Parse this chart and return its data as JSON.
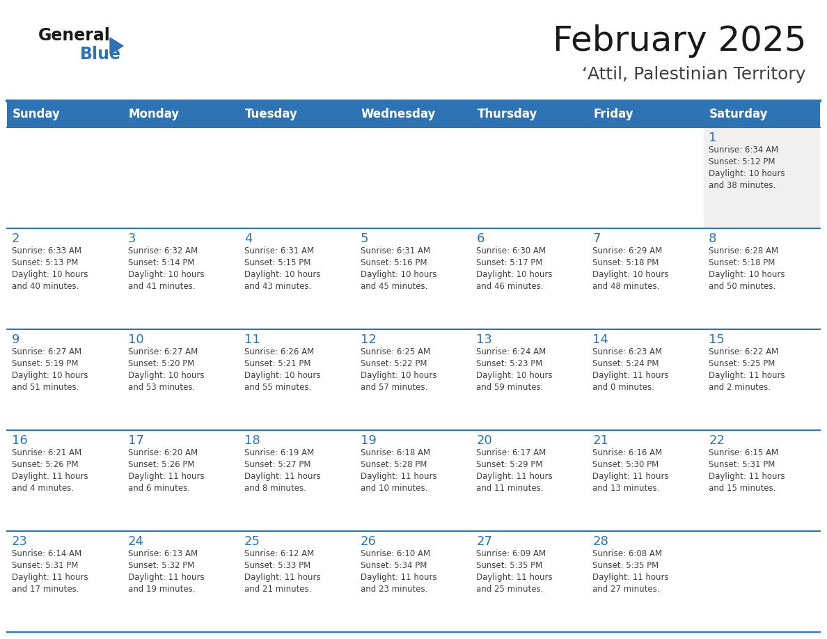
{
  "title": "February 2025",
  "subtitle": "‘Attil, Palestinian Territory",
  "header_bg_color": "#2E74B5",
  "header_text_color": "#FFFFFF",
  "weekdays": [
    "Sunday",
    "Monday",
    "Tuesday",
    "Wednesday",
    "Thursday",
    "Friday",
    "Saturday"
  ],
  "bg_color": "#FFFFFF",
  "cell_alt_color": "#F0F0F0",
  "grid_color": "#2E74B5",
  "day_number_color": "#2E74B5",
  "info_text_color": "#404040",
  "calendar_data": [
    [
      null,
      null,
      null,
      null,
      null,
      null,
      1
    ],
    [
      2,
      3,
      4,
      5,
      6,
      7,
      8
    ],
    [
      9,
      10,
      11,
      12,
      13,
      14,
      15
    ],
    [
      16,
      17,
      18,
      19,
      20,
      21,
      22
    ],
    [
      23,
      24,
      25,
      26,
      27,
      28,
      null
    ]
  ],
  "sunrise_data": {
    "1": "6:34 AM",
    "2": "6:33 AM",
    "3": "6:32 AM",
    "4": "6:31 AM",
    "5": "6:31 AM",
    "6": "6:30 AM",
    "7": "6:29 AM",
    "8": "6:28 AM",
    "9": "6:27 AM",
    "10": "6:27 AM",
    "11": "6:26 AM",
    "12": "6:25 AM",
    "13": "6:24 AM",
    "14": "6:23 AM",
    "15": "6:22 AM",
    "16": "6:21 AM",
    "17": "6:20 AM",
    "18": "6:19 AM",
    "19": "6:18 AM",
    "20": "6:17 AM",
    "21": "6:16 AM",
    "22": "6:15 AM",
    "23": "6:14 AM",
    "24": "6:13 AM",
    "25": "6:12 AM",
    "26": "6:10 AM",
    "27": "6:09 AM",
    "28": "6:08 AM"
  },
  "sunset_data": {
    "1": "5:12 PM",
    "2": "5:13 PM",
    "3": "5:14 PM",
    "4": "5:15 PM",
    "5": "5:16 PM",
    "6": "5:17 PM",
    "7": "5:18 PM",
    "8": "5:18 PM",
    "9": "5:19 PM",
    "10": "5:20 PM",
    "11": "5:21 PM",
    "12": "5:22 PM",
    "13": "5:23 PM",
    "14": "5:24 PM",
    "15": "5:25 PM",
    "16": "5:26 PM",
    "17": "5:26 PM",
    "18": "5:27 PM",
    "19": "5:28 PM",
    "20": "5:29 PM",
    "21": "5:30 PM",
    "22": "5:31 PM",
    "23": "5:31 PM",
    "24": "5:32 PM",
    "25": "5:33 PM",
    "26": "5:34 PM",
    "27": "5:35 PM",
    "28": "5:35 PM"
  },
  "daylight_data": {
    "1": "10 hours\nand 38 minutes.",
    "2": "10 hours\nand 40 minutes.",
    "3": "10 hours\nand 41 minutes.",
    "4": "10 hours\nand 43 minutes.",
    "5": "10 hours\nand 45 minutes.",
    "6": "10 hours\nand 46 minutes.",
    "7": "10 hours\nand 48 minutes.",
    "8": "10 hours\nand 50 minutes.",
    "9": "10 hours\nand 51 minutes.",
    "10": "10 hours\nand 53 minutes.",
    "11": "10 hours\nand 55 minutes.",
    "12": "10 hours\nand 57 minutes.",
    "13": "10 hours\nand 59 minutes.",
    "14": "11 hours\nand 0 minutes.",
    "15": "11 hours\nand 2 minutes.",
    "16": "11 hours\nand 4 minutes.",
    "17": "11 hours\nand 6 minutes.",
    "18": "11 hours\nand 8 minutes.",
    "19": "11 hours\nand 10 minutes.",
    "20": "11 hours\nand 11 minutes.",
    "21": "11 hours\nand 13 minutes.",
    "22": "11 hours\nand 15 minutes.",
    "23": "11 hours\nand 17 minutes.",
    "24": "11 hours\nand 19 minutes.",
    "25": "11 hours\nand 21 minutes.",
    "26": "11 hours\nand 23 minutes.",
    "27": "11 hours\nand 25 minutes.",
    "28": "11 hours\nand 27 minutes."
  },
  "logo_general_color": "#1a1a1a",
  "logo_blue_color": "#2E74B5",
  "title_fontsize": 36,
  "subtitle_fontsize": 18,
  "header_fontsize": 12,
  "day_num_fontsize": 13,
  "info_fontsize": 8.5
}
